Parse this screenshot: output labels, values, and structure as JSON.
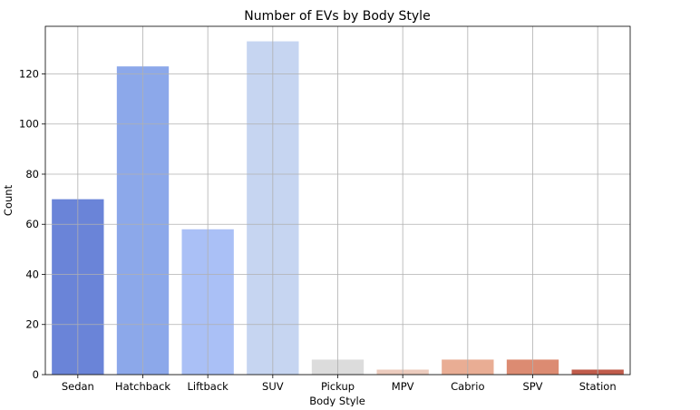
{
  "chart_data": {
    "type": "bar",
    "title": "Number of EVs by Body Style",
    "xlabel": "Body Style",
    "ylabel": "Count",
    "categories": [
      "Sedan",
      "Hatchback",
      "Liftback",
      "SUV",
      "Pickup",
      "MPV",
      "Cabrio",
      "SPV",
      "Station"
    ],
    "values": [
      70,
      123,
      58,
      133,
      6,
      2,
      6,
      6,
      2
    ],
    "colors": [
      "#6a84d8",
      "#8ca8ea",
      "#aac0f6",
      "#c6d5f1",
      "#dcdcdc",
      "#eccbbd",
      "#e9ad94",
      "#dc8b72",
      "#c05c4b"
    ],
    "ylim": [
      0,
      139
    ],
    "yticks": [
      0,
      20,
      40,
      60,
      80,
      100,
      120
    ],
    "grid": true,
    "legend": "none"
  }
}
